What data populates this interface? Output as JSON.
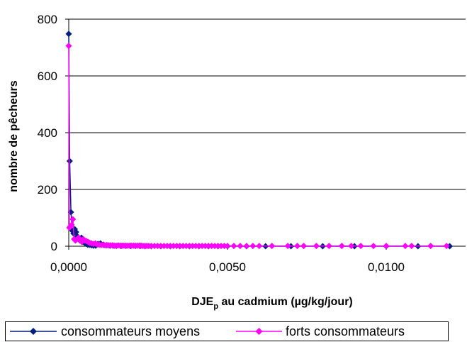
{
  "chart_data": {
    "type": "line",
    "xlabel_main": "DJE",
    "xlabel_sub": "p",
    "xlabel_rest": " au cadmium (µg/kg/jour)",
    "ylabel": "nombre de pêcheurs",
    "xlim": [
      0,
      0.0125
    ],
    "ylim": [
      0,
      800
    ],
    "x_ticks": [
      0,
      0.005,
      0.01
    ],
    "x_tick_labels": [
      "0,0000",
      "0,0050",
      "0,0100"
    ],
    "y_ticks": [
      0,
      200,
      400,
      600,
      800
    ],
    "y_tick_labels": [
      "0",
      "200",
      "400",
      "600",
      "800"
    ],
    "grid": "horizontal",
    "legend_position": "bottom",
    "series": [
      {
        "name": "consommateurs moyens",
        "color": "#001f7f",
        "marker": "diamond",
        "x": [
          0.0,
          3e-05,
          7e-05,
          0.00011,
          0.00015,
          0.00019,
          0.00023,
          0.00027,
          0.00031,
          0.00035,
          0.0004,
          0.00045,
          0.0005,
          0.00055,
          0.0006,
          0.00066,
          0.00072,
          0.00078,
          0.00085,
          0.00092,
          0.001,
          0.0011,
          0.0012,
          0.0013,
          0.0014,
          0.0015,
          0.00165,
          0.0018,
          0.00195,
          0.0021,
          0.00225,
          0.0024,
          0.0026,
          0.0029,
          0.0032,
          0.0035,
          0.0038,
          0.0041,
          0.0044,
          0.0047,
          0.005,
          0.0056,
          0.0062,
          0.007,
          0.008,
          0.009,
          0.01,
          0.011,
          0.012
        ],
        "y": [
          748,
          300,
          120,
          55,
          45,
          60,
          50,
          35,
          25,
          20,
          30,
          15,
          12,
          8,
          5,
          5,
          3,
          2,
          2,
          8,
          10,
          5,
          3,
          2,
          2,
          1,
          1,
          1,
          1,
          1,
          1,
          0,
          0,
          0,
          0,
          0,
          0,
          0,
          0,
          0,
          0,
          0,
          0,
          0,
          0,
          0,
          0,
          0,
          0
        ]
      },
      {
        "name": "forts consommateurs",
        "color": "#ff00ff",
        "marker": "diamond",
        "x": [
          0.0,
          2e-05,
          5e-05,
          9e-05,
          0.00013,
          0.00017,
          0.00021,
          0.00026,
          0.00031,
          0.00036,
          0.00041,
          0.00046,
          0.00051,
          0.00056,
          0.00061,
          0.00066,
          0.00072,
          0.00078,
          0.00084,
          0.0009,
          0.00096,
          0.00102,
          0.00108,
          0.00114,
          0.0012,
          0.00126,
          0.00132,
          0.00138,
          0.00144,
          0.0015,
          0.00156,
          0.00162,
          0.00168,
          0.00174,
          0.0018,
          0.00186,
          0.00192,
          0.00198,
          0.00204,
          0.0021,
          0.00216,
          0.00222,
          0.00228,
          0.00234,
          0.0024,
          0.00246,
          0.00252,
          0.0026,
          0.0027,
          0.0028,
          0.0029,
          0.003,
          0.0031,
          0.0032,
          0.0033,
          0.0034,
          0.0035,
          0.0036,
          0.0037,
          0.0038,
          0.0039,
          0.004,
          0.0041,
          0.0042,
          0.0043,
          0.0044,
          0.0045,
          0.0046,
          0.0047,
          0.0048,
          0.0049,
          0.005,
          0.0052,
          0.0054,
          0.0056,
          0.0058,
          0.006,
          0.0064,
          0.0069,
          0.0072,
          0.0074,
          0.0078,
          0.0082,
          0.0086,
          0.0089,
          0.0092,
          0.0096,
          0.01,
          0.0106,
          0.0108,
          0.0114,
          0.0119
        ],
        "y": [
          706,
          65,
          70,
          75,
          95,
          25,
          20,
          25,
          30,
          20,
          15,
          25,
          20,
          18,
          15,
          12,
          10,
          8,
          10,
          6,
          5,
          4,
          5,
          3,
          4,
          3,
          3,
          3,
          2,
          2,
          3,
          2,
          2,
          2,
          2,
          2,
          2,
          2,
          2,
          2,
          2,
          2,
          2,
          1,
          1,
          1,
          1,
          1,
          1,
          1,
          1,
          1,
          1,
          1,
          1,
          1,
          1,
          1,
          1,
          1,
          1,
          1,
          1,
          1,
          1,
          1,
          1,
          1,
          1,
          1,
          1,
          1,
          1,
          1,
          1,
          1,
          1,
          1,
          1,
          1,
          1,
          1,
          1,
          1,
          1,
          1,
          1,
          1,
          1,
          1,
          1,
          1
        ]
      }
    ]
  }
}
